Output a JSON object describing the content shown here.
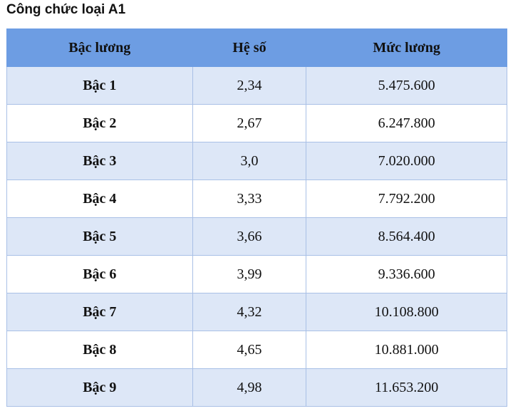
{
  "title": "Công chức loại A1",
  "table": {
    "header": [
      "Bậc lương",
      "Hệ số",
      "Mức lương"
    ],
    "rows": [
      [
        "Bậc 1",
        "2,34",
        "5.475.600"
      ],
      [
        "Bậc 2",
        "2,67",
        "6.247.800"
      ],
      [
        "Bậc 3",
        "3,0",
        "7.020.000"
      ],
      [
        "Bậc 4",
        "3,33",
        "7.792.200"
      ],
      [
        "Bậc 5",
        "3,66",
        "8.564.400"
      ],
      [
        "Bậc 6",
        "3,99",
        "9.336.600"
      ],
      [
        "Bậc 7",
        "4,32",
        "10.108.800"
      ],
      [
        "Bậc 8",
        "4,65",
        "10.881.000"
      ],
      [
        "Bậc 9",
        "4,98",
        "11.653.200"
      ]
    ]
  }
}
